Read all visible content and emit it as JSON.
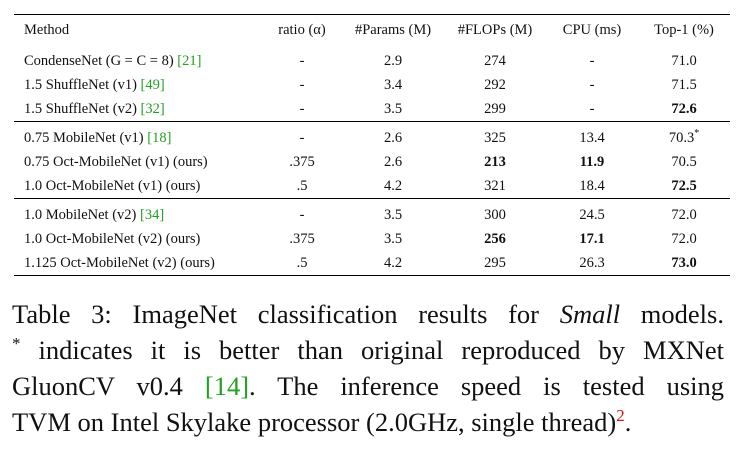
{
  "table": {
    "headers": [
      "Method",
      "ratio (α)",
      "#Params (M)",
      "#FLOPs (M)",
      "CPU (ms)",
      "Top-1 (%)"
    ],
    "groups": [
      [
        {
          "method": "CondenseNet (G = C = 8) ",
          "ref": "[21]",
          "ratio": "-",
          "params": "2.9",
          "flops": "274",
          "cpu": "-",
          "top1": "71.0",
          "bold": []
        },
        {
          "method": "1.5 ShuffleNet (v1) ",
          "ref": "[49]",
          "ratio": "-",
          "params": "3.4",
          "flops": "292",
          "cpu": "-",
          "top1": "71.5",
          "bold": []
        },
        {
          "method": "1.5 ShuffleNet (v2) ",
          "ref": "[32]",
          "ratio": "-",
          "params": "3.5",
          "flops": "299",
          "cpu": "-",
          "top1": "72.6",
          "bold": [
            "top1"
          ]
        }
      ],
      [
        {
          "method": "0.75 MobileNet (v1) ",
          "ref": "[18]",
          "ratio": "-",
          "params": "2.6",
          "flops": "325",
          "cpu": "13.4",
          "top1": "70.3",
          "star": "*",
          "bold": []
        },
        {
          "method": "0.75 Oct-MobileNet (v1) (ours)",
          "ref": "",
          "ratio": ".375",
          "params": "2.6",
          "flops": "213",
          "cpu": "11.9",
          "top1": "70.5",
          "bold": [
            "flops",
            "cpu"
          ]
        },
        {
          "method": "1.0 Oct-MobileNet (v1) (ours)",
          "ref": "",
          "ratio": ".5",
          "params": "4.2",
          "flops": "321",
          "cpu": "18.4",
          "top1": "72.5",
          "bold": [
            "top1"
          ]
        }
      ],
      [
        {
          "method": "1.0 MobileNet (v2) ",
          "ref": "[34]",
          "ratio": "-",
          "params": "3.5",
          "flops": "300",
          "cpu": "24.5",
          "top1": "72.0",
          "bold": []
        },
        {
          "method": "1.0 Oct-MobileNet (v2) (ours)",
          "ref": "",
          "ratio": ".375",
          "params": "3.5",
          "flops": "256",
          "cpu": "17.1",
          "top1": "72.0",
          "bold": [
            "flops",
            "cpu"
          ]
        },
        {
          "method": "1.125 Oct-MobileNet (v2) (ours)",
          "ref": "",
          "ratio": ".5",
          "params": "4.2",
          "flops": "295",
          "cpu": "26.3",
          "top1": "73.0",
          "bold": [
            "top1"
          ]
        }
      ]
    ]
  },
  "caption": {
    "line1_a": "Table 3:  ImageNet classification results for ",
    "line1_em": "Small",
    "line1_b": " models.",
    "line2_star": "*",
    "line2": " indicates it is better than original reproduced by MXNet",
    "line3_a": "GluonCV v0.4 ",
    "line3_ref": "[14]",
    "line3_b": ".  The inference speed is tested using",
    "line4": "TVM on Intel Skylake processor (2.0GHz, single thread)",
    "line4_fn": "2",
    "line4_end": "."
  }
}
